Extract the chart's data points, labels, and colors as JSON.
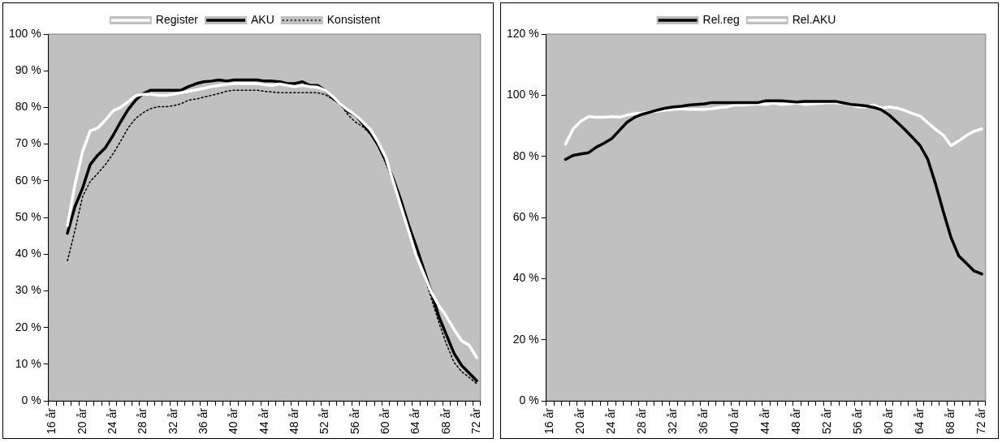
{
  "chart_data": [
    {
      "type": "line",
      "categories": [
        "16 år",
        null,
        null,
        null,
        "20 år",
        null,
        null,
        null,
        "24 år",
        null,
        null,
        null,
        "28 år",
        null,
        null,
        null,
        "32 år",
        null,
        null,
        null,
        "36 år",
        null,
        null,
        null,
        "40 år",
        null,
        null,
        null,
        "44 år",
        null,
        null,
        null,
        "48 år",
        null,
        null,
        null,
        "52 år",
        null,
        null,
        null,
        "56 år",
        null,
        null,
        null,
        "60 år",
        null,
        null,
        null,
        "64 år",
        null,
        null,
        null,
        "68 år",
        null,
        null,
        null,
        "72 år"
      ],
      "series": [
        {
          "name": "Register",
          "color": "#ffffff",
          "line_style": "solid",
          "values": [
            null,
            null,
            47.8,
            59,
            68,
            73.6,
            74.4,
            76.5,
            79,
            80,
            81.5,
            83.2,
            83.6,
            83.6,
            83.3,
            83.3,
            83.6,
            84,
            84.4,
            84.8,
            85.2,
            85.7,
            86,
            86.3,
            86.5,
            86.5,
            86.5,
            86.5,
            86.2,
            86,
            86.4,
            86,
            85.7,
            86,
            85.7,
            85.5,
            84.7,
            83,
            81,
            79.3,
            78,
            76,
            73.9,
            70.5,
            66.4,
            59.7,
            53,
            46.4,
            39.7,
            34.7,
            29.7,
            26,
            23,
            19.5,
            16.4,
            15.2,
            11.8
          ]
        },
        {
          "name": "AKU",
          "color": "#000000",
          "line_style": "solid",
          "values": [
            null,
            null,
            45.7,
            53,
            58,
            64.4,
            67,
            69,
            72.3,
            76,
            79.4,
            82,
            83.8,
            84.7,
            84.7,
            84.7,
            84.7,
            84.7,
            85.7,
            86.5,
            87,
            87.2,
            87.5,
            87.2,
            87.5,
            87.5,
            87.5,
            87.5,
            87.2,
            87.2,
            87,
            86.5,
            86.5,
            87,
            86,
            86,
            84.7,
            82.6,
            81,
            78.9,
            78,
            75.5,
            73,
            69.7,
            65.5,
            60.5,
            54.7,
            48,
            42.2,
            36,
            29.7,
            23,
            18,
            13,
            9.7,
            7.6,
            5.5
          ]
        },
        {
          "name": "Konsistent",
          "color": "#000000",
          "line_style": "dotted",
          "values": [
            null,
            null,
            38.2,
            46.5,
            55.7,
            59.8,
            62,
            64.4,
            67.3,
            70.7,
            74.4,
            77,
            78.6,
            79.7,
            80.2,
            80.2,
            80.5,
            81,
            82,
            82.3,
            82.8,
            83.3,
            83.8,
            84.4,
            84.7,
            84.7,
            84.7,
            84.7,
            84.4,
            84.2,
            84,
            84,
            84,
            84,
            84,
            84,
            83.5,
            82.2,
            81,
            78,
            76,
            74.7,
            72.6,
            69.7,
            64.7,
            59.7,
            53.9,
            47.2,
            40.5,
            34.7,
            28,
            21.4,
            15.5,
            10.5,
            8,
            6.4,
            4.7
          ]
        }
      ],
      "ylim": [
        0,
        100
      ],
      "yticks": [
        {
          "value": 0,
          "label": "0 %"
        },
        {
          "value": 10,
          "label": "10 %"
        },
        {
          "value": 20,
          "label": "20 %"
        },
        {
          "value": 30,
          "label": "30 %"
        },
        {
          "value": 40,
          "label": "40 %"
        },
        {
          "value": 50,
          "label": "50 %"
        },
        {
          "value": 60,
          "label": "60 %"
        },
        {
          "value": 70,
          "label": "70 %"
        },
        {
          "value": 80,
          "label": "80 %"
        },
        {
          "value": 90,
          "label": "90 %"
        },
        {
          "value": 100,
          "label": "100 %"
        }
      ],
      "grid": false,
      "legend": "top",
      "marker": "none"
    },
    {
      "type": "line",
      "categories": [
        "16 år",
        null,
        null,
        null,
        "20 år",
        null,
        null,
        null,
        "24 år",
        null,
        null,
        null,
        "28 år",
        null,
        null,
        null,
        "32 år",
        null,
        null,
        null,
        "36 år",
        null,
        null,
        null,
        "40 år",
        null,
        null,
        null,
        "44 år",
        null,
        null,
        null,
        "48 år",
        null,
        null,
        null,
        "52 år",
        null,
        null,
        null,
        "56 år",
        null,
        null,
        null,
        "60 år",
        null,
        null,
        null,
        "64 år",
        null,
        null,
        null,
        "68 år",
        null,
        null,
        null,
        "72 år"
      ],
      "series": [
        {
          "name": "Rel.reg",
          "color": "#000000",
          "line_style": "solid",
          "values": [
            null,
            null,
            79,
            80.3,
            80.8,
            81.2,
            83,
            84.3,
            85.8,
            88.5,
            91.2,
            92.8,
            93.8,
            94.5,
            95.2,
            95.8,
            96.2,
            96.4,
            96.8,
            97,
            97.2,
            97.6,
            97.6,
            97.6,
            97.6,
            97.6,
            97.6,
            97.6,
            98.2,
            98.2,
            98.2,
            98,
            97.8,
            98,
            98,
            98,
            98,
            98,
            97.5,
            97,
            96.8,
            96.5,
            96,
            95.2,
            93.5,
            91.2,
            88.8,
            86.2,
            83.5,
            79,
            71,
            62,
            53.5,
            47.5,
            45,
            42.5,
            41.5
          ]
        },
        {
          "name": "Rel.AKU",
          "color": "#ffffff",
          "line_style": "solid",
          "values": [
            null,
            null,
            84,
            89,
            91.5,
            93,
            92.8,
            92.8,
            93,
            92.8,
            93.5,
            94,
            94.2,
            94.5,
            94.8,
            95.2,
            95.4,
            95.6,
            95.4,
            95.4,
            95.4,
            95.6,
            96,
            96.2,
            96.8,
            96.8,
            97,
            97.2,
            97,
            97.4,
            97,
            97.2,
            97.5,
            97,
            97.2,
            97.4,
            97.5,
            97.5,
            97.4,
            96.8,
            96.2,
            96.2,
            96.8,
            95.8,
            96.2,
            95.8,
            95,
            94,
            93.2,
            91,
            88.8,
            87,
            83.5,
            85,
            86.8,
            88.2,
            89
          ]
        }
      ],
      "ylim": [
        0,
        120
      ],
      "yticks": [
        {
          "value": 0,
          "label": "0 %"
        },
        {
          "value": 20,
          "label": "20 %"
        },
        {
          "value": 40,
          "label": "40 %"
        },
        {
          "value": 60,
          "label": "60 %"
        },
        {
          "value": 80,
          "label": "80 %"
        },
        {
          "value": 100,
          "label": "100 %"
        },
        {
          "value": 120,
          "label": "120 %"
        }
      ],
      "grid": false,
      "legend": "top",
      "marker": "none"
    }
  ]
}
